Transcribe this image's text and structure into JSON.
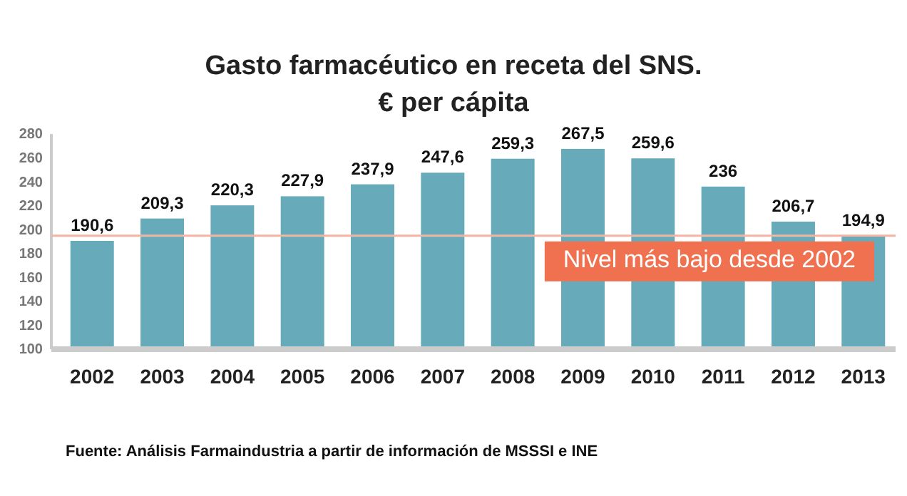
{
  "chart_data": {
    "type": "bar",
    "title": "Gasto farmacéutico en receta del SNS.\n€ per cápita",
    "categories": [
      "2002",
      "2003",
      "2004",
      "2005",
      "2006",
      "2007",
      "2008",
      "2009",
      "2010",
      "2011",
      "2012",
      "2013"
    ],
    "values": [
      190.6,
      209.3,
      220.3,
      227.9,
      237.9,
      247.6,
      259.3,
      267.5,
      259.6,
      236,
      206.7,
      194.9
    ],
    "value_labels": [
      "190,6",
      "209,3",
      "220,3",
      "227,9",
      "237,9",
      "247,6",
      "259,3",
      "267,5",
      "259,6",
      "236",
      "206,7",
      "194,9"
    ],
    "color": "#67aab9",
    "ylim": [
      100,
      280
    ],
    "yticks": [
      100,
      120,
      140,
      160,
      180,
      200,
      220,
      240,
      260,
      280
    ],
    "grid": false,
    "ref_lines": [
      {
        "axis": "y",
        "value": 194.9,
        "label": "Nivel más bajo desde 2002",
        "color": "#f4b4a4"
      }
    ],
    "annotations": [
      "Fuente: Análisis Farmaindustria a partir de información de MSSSI e INE"
    ]
  }
}
